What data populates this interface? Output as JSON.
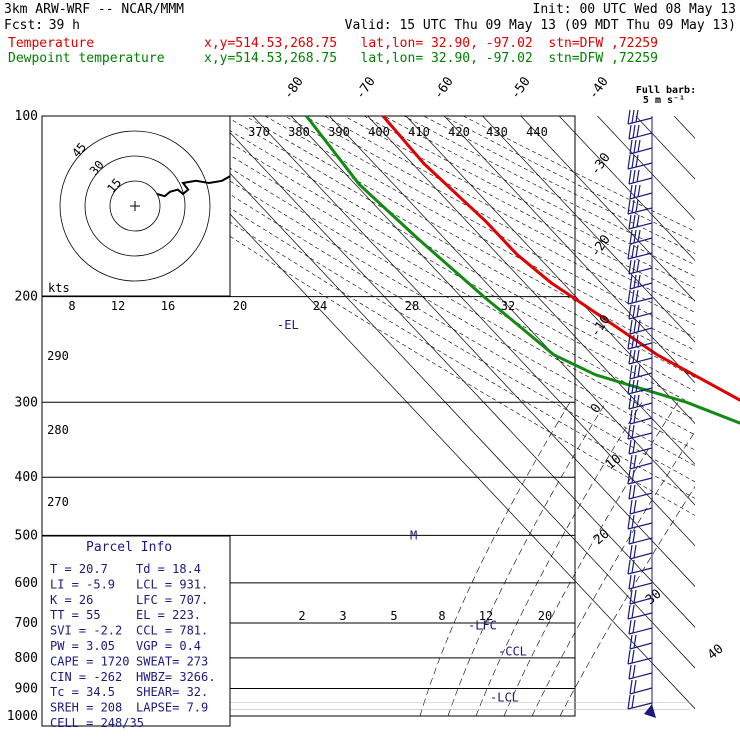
{
  "header": {
    "model": "3km ARW-WRF -- NCAR/MMM",
    "init": "Init: 00 UTC Wed 08 May 13",
    "fcst_label": "Fcst:",
    "fcst_value": "39 h",
    "valid": "Valid: 15 UTC Thu 09 May 13 (09 MDT Thu 09 May 13)",
    "temp_label": "Temperature",
    "temp_info": "x,y=514.53,268.75   lat,lon= 32.90, -97.02  stn=DFW ,72259",
    "dew_label": "Dewpoint temperature",
    "dew_info": "x,y=514.53,268.75   lat,lon= 32.90, -97.02  stn=DFW ,72259"
  },
  "colors": {
    "temperature": "#e00000",
    "dewpoint": "#138a13",
    "annotation": "#1a1a80",
    "grid": "#000000"
  },
  "chart_data": {
    "type": "line",
    "subtype": "skew-T log-P sounding",
    "pressure_levels": [
      100,
      200,
      300,
      400,
      500,
      600,
      700,
      800,
      900,
      1000
    ],
    "isotherm_labels": [
      "-80",
      "-70",
      "-60",
      "-50",
      "-40",
      "-30",
      "-20",
      "-10",
      "0",
      "10",
      "20",
      "30",
      "40"
    ],
    "dry_adiabat_labels": [
      "370",
      "380",
      "390",
      "400",
      "410",
      "420",
      "430",
      "440",
      "290",
      "280",
      "270"
    ],
    "mixing_ratio_labels": [
      "2",
      "3",
      "5",
      "8",
      "12",
      "20"
    ],
    "series": [
      {
        "name": "Temperature",
        "color": "#e00000",
        "points": [
          [
            100,
            -56
          ],
          [
            120,
            -57
          ],
          [
            150,
            -55
          ],
          [
            170,
            -55
          ],
          [
            190,
            -53
          ],
          [
            200,
            -51
          ],
          [
            250,
            -43
          ],
          [
            300,
            -32
          ],
          [
            350,
            -23
          ],
          [
            400,
            -15
          ],
          [
            450,
            -9
          ],
          [
            500,
            -5
          ],
          [
            550,
            -1
          ],
          [
            600,
            2
          ],
          [
            650,
            6
          ],
          [
            700,
            10
          ],
          [
            750,
            14
          ],
          [
            800,
            17
          ],
          [
            850,
            16
          ],
          [
            870,
            15
          ],
          [
            900,
            16
          ],
          [
            930,
            19
          ],
          [
            960,
            20.7
          ]
        ]
      },
      {
        "name": "Dewpoint temperature",
        "color": "#138a13",
        "points": [
          [
            100,
            -76
          ],
          [
            130,
            -79
          ],
          [
            160,
            -77
          ],
          [
            200,
            -74
          ],
          [
            250,
            -70
          ],
          [
            270,
            -64
          ],
          [
            300,
            -47
          ],
          [
            350,
            -30
          ],
          [
            400,
            -20
          ],
          [
            450,
            -13
          ],
          [
            500,
            -8
          ],
          [
            550,
            -4
          ],
          [
            580,
            -2
          ],
          [
            600,
            -3
          ],
          [
            650,
            -6
          ],
          [
            700,
            -9
          ],
          [
            750,
            -12
          ],
          [
            790,
            -13
          ],
          [
            850,
            4
          ],
          [
            880,
            16
          ],
          [
            900,
            17
          ],
          [
            960,
            18.4
          ]
        ]
      }
    ],
    "hodograph": {
      "units_label": "kts",
      "ring_labels": [
        "15",
        "30",
        "45"
      ],
      "speed_scale": [
        "8",
        "12",
        "16",
        "20",
        "24",
        "28",
        "32"
      ],
      "points": [
        [
          0,
          0
        ],
        [
          3,
          1
        ],
        [
          5,
          -1
        ],
        [
          8,
          -2
        ],
        [
          10,
          0
        ],
        [
          12,
          -2
        ],
        [
          10,
          -5
        ],
        [
          15,
          -6
        ],
        [
          20,
          -5
        ],
        [
          25,
          -6
        ],
        [
          28,
          -8
        ]
      ]
    },
    "levels_marked": [
      {
        "label": "-EL",
        "pressure": 223
      },
      {
        "label": "-LFC",
        "pressure": 707
      },
      {
        "label": "-CCL",
        "pressure": 781
      },
      {
        "label": "-LCL",
        "pressure": 931
      },
      {
        "label": "M",
        "pressure": 500
      }
    ],
    "wind_barb_legend": {
      "line1": "Full barb:",
      "line2": "5 m s⁻¹"
    }
  },
  "parcel_info": {
    "title": "Parcel Info",
    "rows": [
      {
        "left": "T  =    20.7",
        "right": "Td =   18.4"
      },
      {
        "left": "LI =    -5.9",
        "right": "LCL =  931."
      },
      {
        "left": "K  =      26",
        "right": "LFC =  707."
      },
      {
        "left": "TT =      55",
        "right": "EL  =  223."
      },
      {
        "left": "SVI =   -2.2",
        "right": "CCL =  781."
      },
      {
        "left": "PW =    3.05",
        "right": "VGP =   0.4"
      },
      {
        "left": "CAPE =  1720",
        "right": "SWEAT=  273"
      },
      {
        "left": "CIN =   -262",
        "right": "HWBZ= 3266."
      },
      {
        "left": "Tc =    34.5",
        "right": "SHEAR=  32."
      },
      {
        "left": "SREH =   208",
        "right": "LAPSE=   7.9"
      },
      {
        "left": "CELL = 248/35",
        "right": ""
      }
    ]
  }
}
